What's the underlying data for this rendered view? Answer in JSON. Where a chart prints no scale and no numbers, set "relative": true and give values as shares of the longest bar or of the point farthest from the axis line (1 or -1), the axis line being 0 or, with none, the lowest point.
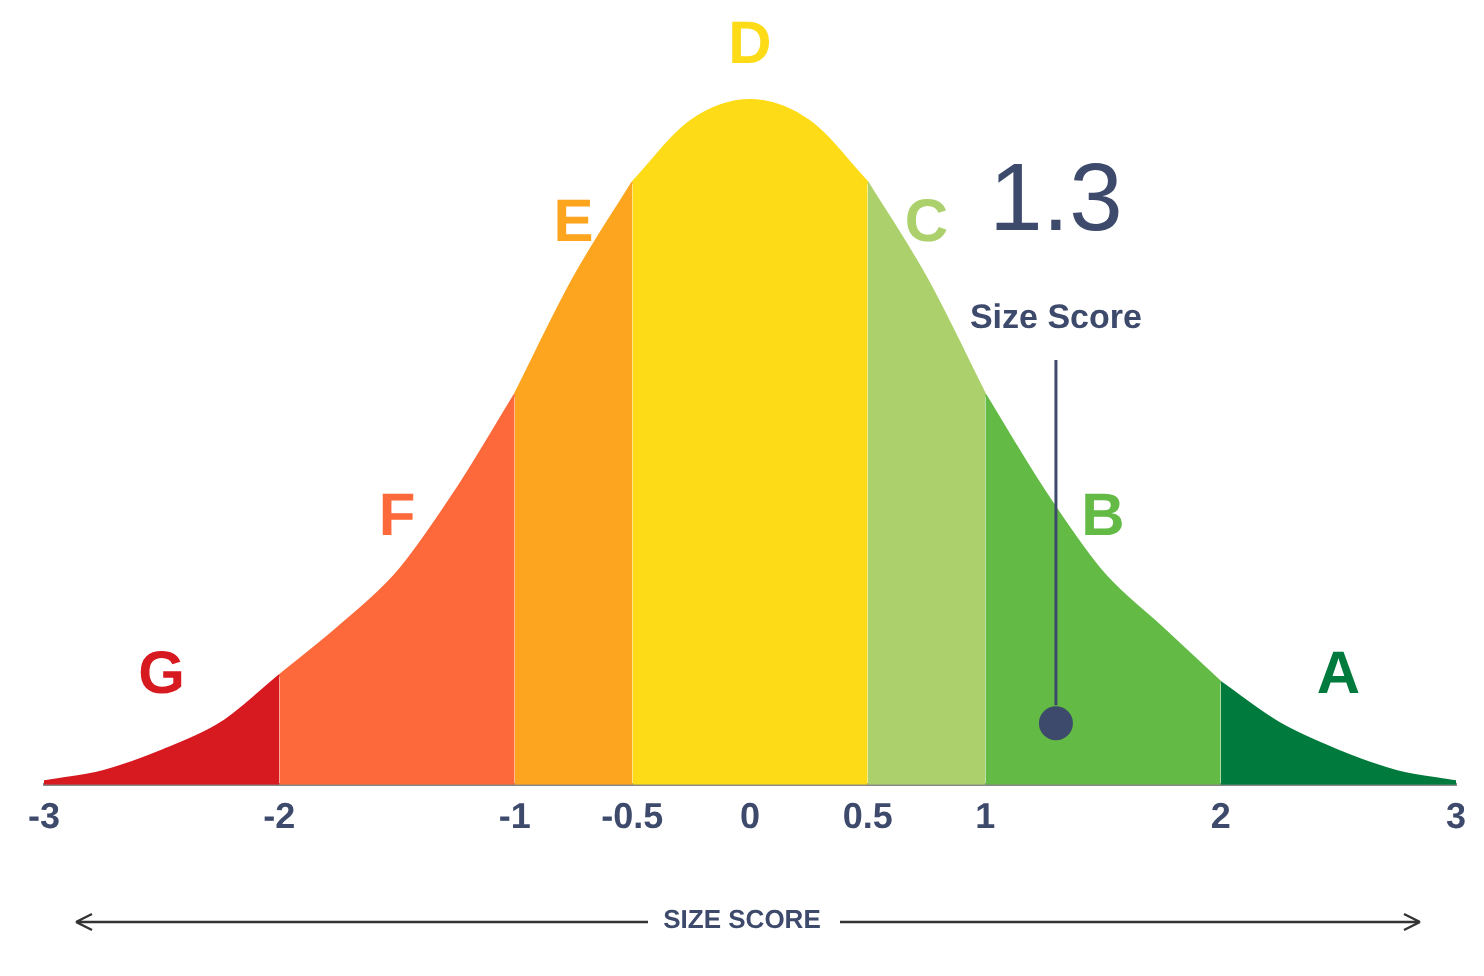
{
  "chart_data": {
    "type": "area",
    "relative": true,
    "xlabel": "SIZE SCORE",
    "xlim": [
      -3,
      3
    ],
    "xticks": [
      -3,
      -2,
      -1,
      -0.5,
      0,
      0.5,
      1,
      2,
      3
    ],
    "grid": false,
    "legend": false,
    "marker": "none",
    "series": [
      {
        "name": "G",
        "color": "#d71920",
        "x": [
          -3,
          -2.75,
          -2.5,
          -2.25,
          -2
        ],
        "values": [
          0.005,
          0.02,
          0.05,
          0.09,
          0.16
        ]
      },
      {
        "name": "F",
        "color": "#fd693a",
        "x": [
          -2,
          -1.75,
          -1.5,
          -1.25,
          -1
        ],
        "values": [
          0.16,
          0.23,
          0.31,
          0.43,
          0.57
        ]
      },
      {
        "name": "E",
        "color": "#fea51f",
        "x": [
          -1,
          -0.75,
          -0.5
        ],
        "values": [
          0.57,
          0.74,
          0.88
        ]
      },
      {
        "name": "D",
        "color": "#fddb17",
        "x": [
          -0.5,
          -0.25,
          0,
          0.25,
          0.5
        ],
        "values": [
          0.88,
          0.97,
          1,
          0.97,
          0.88
        ]
      },
      {
        "name": "C",
        "color": "#acd16c",
        "x": [
          0.5,
          0.75,
          1
        ],
        "values": [
          0.88,
          0.74,
          0.57
        ]
      },
      {
        "name": "B",
        "color": "#63bb46",
        "x": [
          1,
          1.25,
          1.5,
          1.75,
          2
        ],
        "values": [
          0.57,
          0.43,
          0.31,
          0.23,
          0.15
        ]
      },
      {
        "name": "A",
        "color": "#007a3d",
        "x": [
          2,
          2.25,
          2.5,
          2.75,
          3
        ],
        "values": [
          0.15,
          0.09,
          0.05,
          0.02,
          0.005
        ]
      },
      {
        "type": "scatter",
        "color": "#3d4a6b",
        "x": [
          1.3
        ],
        "values": [
          0.09
        ],
        "marker": "circle"
      }
    ],
    "annotations": [
      "1.3",
      "Size Score"
    ]
  }
}
